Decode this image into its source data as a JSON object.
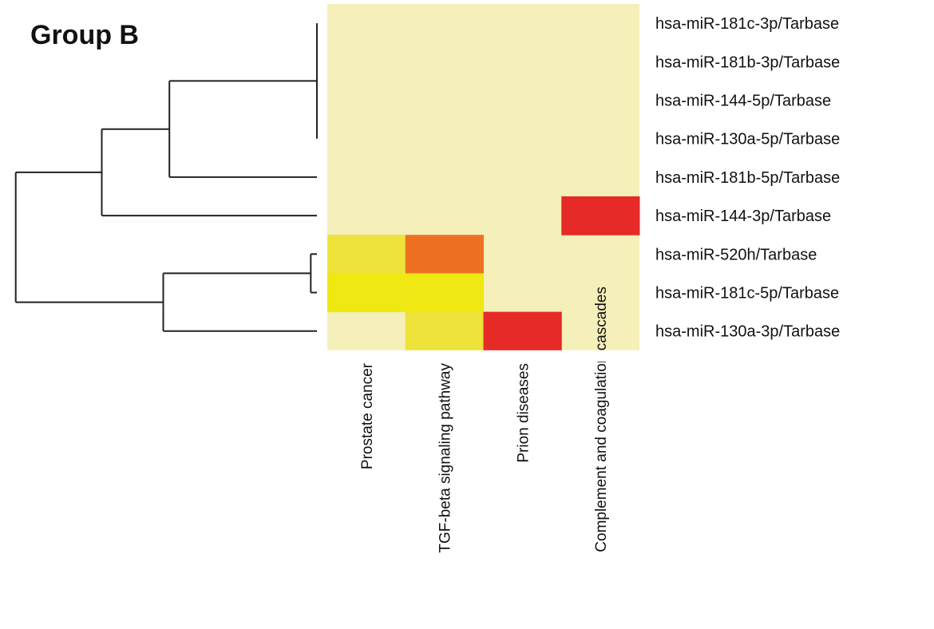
{
  "chart_data": {
    "type": "heatmap",
    "title": "Group B",
    "rows": [
      "hsa-miR-181c-3p/Tarbase",
      "hsa-miR-181b-3p/Tarbase",
      "hsa-miR-144-5p/Tarbase",
      "hsa-miR-130a-5p/Tarbase",
      "hsa-miR-181b-5p/Tarbase",
      "hsa-miR-144-3p/Tarbase",
      "hsa-miR-520h/Tarbase",
      "hsa-miR-181c-5p/Tarbase",
      "hsa-miR-130a-3p/Tarbase"
    ],
    "columns": [
      "Prostate cancer",
      "TGF-beta signaling pathway",
      "Prion diseases",
      "Complement and coagulation cascades"
    ],
    "column_label_clip": [
      0,
      0,
      0,
      2
    ],
    "values": [
      [
        0,
        0,
        0,
        0
      ],
      [
        0,
        0,
        0,
        0
      ],
      [
        0,
        0,
        0,
        0
      ],
      [
        0,
        0,
        0,
        0
      ],
      [
        0,
        0,
        0,
        0
      ],
      [
        0,
        0,
        0,
        4
      ],
      [
        2,
        3,
        0,
        0
      ],
      [
        1,
        1,
        0,
        0
      ],
      [
        0,
        2,
        4,
        0
      ]
    ],
    "palette": [
      "#f5efb9",
      "#efe812",
      "#ede33a",
      "#ee7123",
      "#e62a27"
    ],
    "dendrogram": {
      "merges": [
        [
          [
            0,
            1,
            2,
            3
          ],
          0.0
        ],
        [
          [
            0,
            1,
            2,
            3,
            4
          ],
          0.48
        ],
        [
          [
            0,
            1,
            2,
            3,
            4,
            5
          ],
          0.7
        ],
        [
          [
            6,
            7
          ],
          0.02
        ],
        [
          [
            6,
            7,
            8
          ],
          0.5
        ],
        [
          [
            0,
            1,
            2,
            3,
            4,
            5,
            6,
            7,
            8
          ],
          0.98
        ]
      ]
    },
    "grid": false,
    "legend": "none"
  }
}
